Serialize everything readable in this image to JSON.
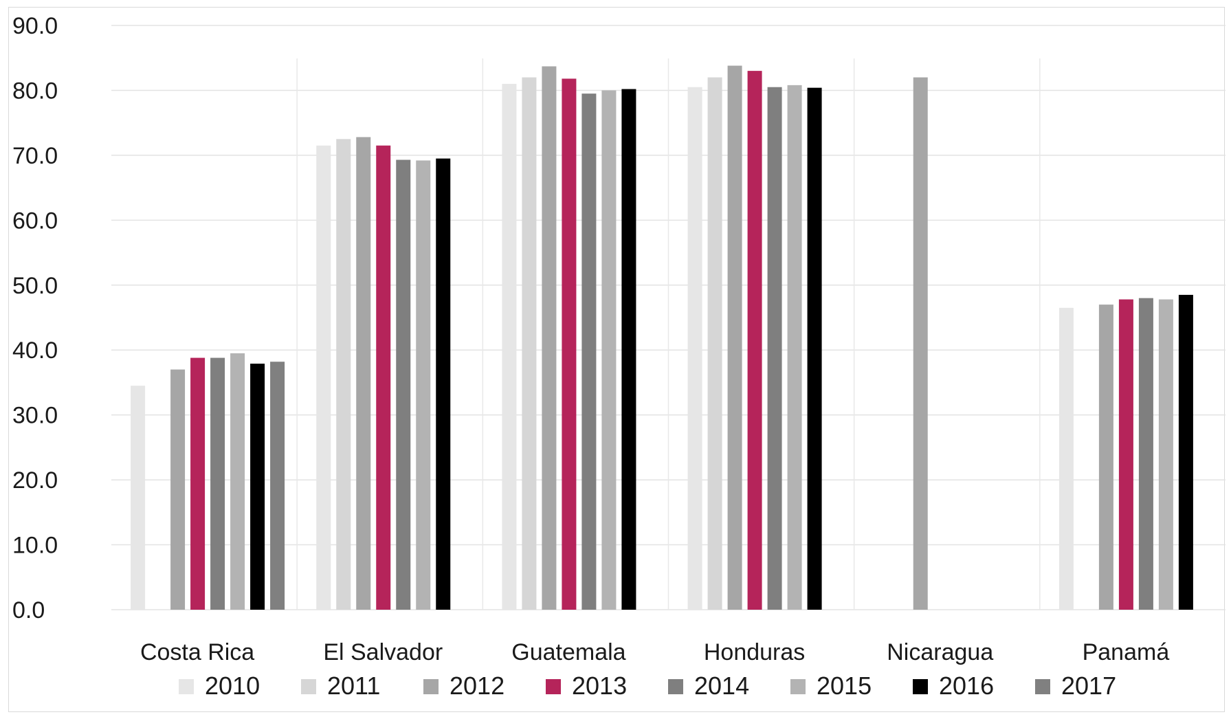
{
  "chart_data": {
    "type": "bar",
    "title": "",
    "xlabel": "",
    "ylabel": "",
    "ylim": [
      0,
      90
    ],
    "yticks": [
      "0.0",
      "10.0",
      "20.0",
      "30.0",
      "40.0",
      "50.0",
      "60.0",
      "70.0",
      "80.0",
      "90.0"
    ],
    "grid": true,
    "legend_position": "bottom",
    "categories": [
      "Costa Rica",
      "El Salvador",
      "Guatemala",
      "Honduras",
      "Nicaragua",
      "Panamá"
    ],
    "series": [
      {
        "name": "2010",
        "color": "#e6e6e6",
        "values": [
          34.5,
          71.5,
          81.0,
          80.5,
          null,
          46.5
        ]
      },
      {
        "name": "2011",
        "color": "#d6d6d6",
        "values": [
          null,
          72.5,
          82.0,
          82.0,
          null,
          null
        ]
      },
      {
        "name": "2012",
        "color": "#a6a6a6",
        "values": [
          37.0,
          72.8,
          83.7,
          83.8,
          82.0,
          47.0
        ]
      },
      {
        "name": "2013",
        "color": "#b5245a",
        "values": [
          38.8,
          71.5,
          81.8,
          83.0,
          null,
          47.8
        ]
      },
      {
        "name": "2014",
        "color": "#7f7f7f",
        "values": [
          38.8,
          69.3,
          79.5,
          80.5,
          null,
          48.0
        ]
      },
      {
        "name": "2015",
        "color": "#b3b3b3",
        "values": [
          39.5,
          69.2,
          80.0,
          80.8,
          null,
          47.8
        ]
      },
      {
        "name": "2016",
        "color": "#000000",
        "values": [
          37.9,
          69.5,
          80.2,
          80.4,
          null,
          48.5
        ]
      },
      {
        "name": "2017",
        "color": "#808080",
        "values": [
          38.2,
          null,
          null,
          null,
          null,
          null
        ]
      }
    ]
  }
}
